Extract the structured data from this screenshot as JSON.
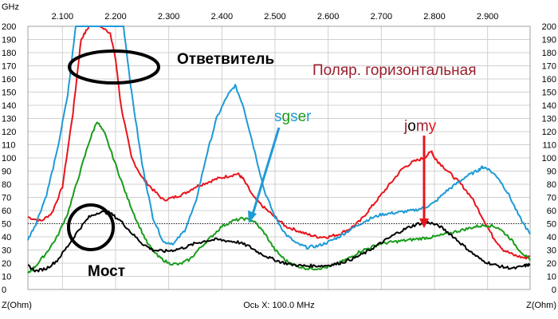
{
  "chart_data": {
    "type": "line",
    "x_unit": "GHz",
    "y_unit_left": "Z(Ohm)",
    "y_unit_right": "Z(Ohm)",
    "bottom_left_label": "Z(Ohm)",
    "bottom_right_label": "Z(Ohm)",
    "x_axis_caption": "Ось X: 100.0 MHz",
    "x_ticks": [
      "2.100",
      "2.200",
      "2.300",
      "2.400",
      "2.500",
      "2.600",
      "2.700",
      "2.800",
      "2.900"
    ],
    "x_tick_values": [
      2.1,
      2.2,
      2.3,
      2.4,
      2.5,
      2.6,
      2.7,
      2.8,
      2.9
    ],
    "xlim": [
      2.035,
      2.98
    ],
    "y_ticks": [
      "0",
      "10",
      "20",
      "30",
      "40",
      "50",
      "60",
      "70",
      "80",
      "90",
      "100",
      "110",
      "120",
      "130",
      "140",
      "150",
      "160",
      "170",
      "180",
      "190",
      "200"
    ],
    "ylim": [
      0,
      200
    ],
    "reference_line_y": 50,
    "grid": true,
    "series": [
      {
        "color": "#e8141c",
        "x": [
          2.035,
          2.06,
          2.08,
          2.1,
          2.12,
          2.135,
          2.15,
          2.17,
          2.19,
          2.2,
          2.21,
          2.23,
          2.25,
          2.27,
          2.29,
          2.31,
          2.33,
          2.35,
          2.37,
          2.39,
          2.41,
          2.43,
          2.44,
          2.46,
          2.48,
          2.5,
          2.52,
          2.54,
          2.56,
          2.58,
          2.6,
          2.62,
          2.64,
          2.66,
          2.68,
          2.7,
          2.72,
          2.74,
          2.76,
          2.78,
          2.795,
          2.8,
          2.81,
          2.83,
          2.85,
          2.87,
          2.89,
          2.91,
          2.93,
          2.95,
          2.97,
          2.98
        ],
        "y": [
          55,
          52,
          58,
          78,
          135,
          190,
          200,
          200,
          195,
          175,
          140,
          100,
          85,
          76,
          68,
          70,
          73,
          78,
          81,
          84,
          86,
          88,
          84,
          70,
          62,
          55,
          48,
          45,
          42,
          40,
          40,
          42,
          46,
          52,
          62,
          72,
          82,
          92,
          97,
          100,
          105,
          100,
          96,
          88,
          80,
          70,
          55,
          40,
          30,
          26,
          24,
          25
        ]
      },
      {
        "color": "#1e9ad6",
        "x": [
          2.035,
          2.05,
          2.07,
          2.09,
          2.11,
          2.125,
          2.135,
          2.15,
          2.17,
          2.19,
          2.2,
          2.215,
          2.23,
          2.25,
          2.27,
          2.29,
          2.31,
          2.33,
          2.35,
          2.37,
          2.39,
          2.41,
          2.425,
          2.44,
          2.46,
          2.48,
          2.5,
          2.52,
          2.54,
          2.56,
          2.58,
          2.6,
          2.62,
          2.64,
          2.66,
          2.68,
          2.7,
          2.72,
          2.74,
          2.76,
          2.78,
          2.8,
          2.82,
          2.84,
          2.86,
          2.88,
          2.89,
          2.9,
          2.92,
          2.94,
          2.96,
          2.98
        ],
        "y": [
          38,
          50,
          72,
          105,
          148,
          200,
          200,
          200,
          200,
          200,
          200,
          200,
          150,
          95,
          55,
          36,
          35,
          45,
          65,
          100,
          130,
          147,
          155,
          140,
          108,
          75,
          55,
          42,
          35,
          32,
          33,
          36,
          40,
          45,
          50,
          54,
          57,
          58,
          59,
          60,
          62,
          66,
          74,
          80,
          86,
          90,
          93,
          92,
          85,
          72,
          55,
          42
        ]
      },
      {
        "color": "#1a9c1a",
        "x": [
          2.035,
          2.05,
          2.07,
          2.09,
          2.11,
          2.13,
          2.15,
          2.165,
          2.18,
          2.2,
          2.22,
          2.24,
          2.26,
          2.28,
          2.3,
          2.32,
          2.34,
          2.36,
          2.38,
          2.4,
          2.42,
          2.44,
          2.46,
          2.48,
          2.5,
          2.52,
          2.54,
          2.56,
          2.58,
          2.6,
          2.62,
          2.64,
          2.66,
          2.68,
          2.7,
          2.72,
          2.74,
          2.76,
          2.78,
          2.8,
          2.82,
          2.84,
          2.86,
          2.88,
          2.9,
          2.92,
          2.94,
          2.96,
          2.98
        ],
        "y": [
          12,
          18,
          28,
          40,
          58,
          85,
          112,
          128,
          118,
          95,
          72,
          52,
          35,
          25,
          20,
          19,
          23,
          32,
          40,
          48,
          52,
          54,
          52,
          43,
          30,
          22,
          18,
          16,
          16,
          17,
          20,
          24,
          29,
          32,
          35,
          36,
          37,
          38,
          39,
          40,
          42,
          44,
          46,
          48,
          49,
          47,
          40,
          30,
          22
        ]
      },
      {
        "color": "#000000",
        "x": [
          2.035,
          2.05,
          2.07,
          2.09,
          2.11,
          2.13,
          2.15,
          2.17,
          2.19,
          2.21,
          2.23,
          2.25,
          2.27,
          2.29,
          2.31,
          2.33,
          2.35,
          2.37,
          2.39,
          2.41,
          2.43,
          2.45,
          2.47,
          2.49,
          2.51,
          2.53,
          2.55,
          2.57,
          2.59,
          2.61,
          2.63,
          2.65,
          2.67,
          2.69,
          2.71,
          2.73,
          2.75,
          2.77,
          2.79,
          2.81,
          2.83,
          2.85,
          2.87,
          2.89,
          2.91,
          2.93,
          2.95,
          2.97,
          2.98
        ],
        "y": [
          18,
          14,
          16,
          22,
          33,
          45,
          55,
          59,
          58,
          52,
          43,
          35,
          30,
          29,
          30,
          32,
          35,
          37,
          38,
          37,
          36,
          33,
          28,
          24,
          21,
          19,
          18,
          18,
          18,
          19,
          21,
          24,
          28,
          33,
          38,
          43,
          47,
          50,
          51,
          48,
          42,
          35,
          28,
          22,
          19,
          17,
          16,
          18,
          19
        ]
      }
    ],
    "annotations": {
      "coupler": "Ответвитель",
      "bridge": "Мост",
      "polarization": "Поляр. горизонтальная",
      "sgser": [
        "s",
        "g",
        "s",
        "e",
        "r"
      ],
      "jomy": [
        "j",
        "o",
        "m",
        "y"
      ]
    },
    "colors": {
      "red": "#e8141c",
      "blue": "#1e9ad6",
      "green": "#1a9c1a",
      "black": "#000000",
      "polarization_text": "#9c1f2e",
      "grid": "#d0d0d0"
    }
  }
}
